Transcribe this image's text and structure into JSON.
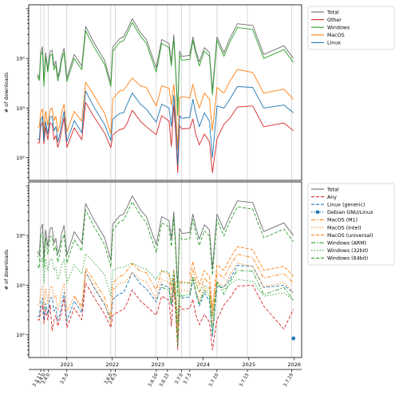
{
  "chart_data": [
    {
      "type": "line",
      "ylabel": "# of downloads",
      "yscale": "log",
      "yticks": [
        {
          "v": 100,
          "label": "10²"
        },
        {
          "v": 1000,
          "label": "10³"
        },
        {
          "v": 10000,
          "label": "10⁴"
        }
      ],
      "ylim": [
        35,
        120000
      ],
      "grid": "vertical at release dates",
      "legend": "outside right, upper",
      "series": [
        {
          "name": "Total",
          "color": "#6d6d6d",
          "dash": "",
          "values": [
            4800,
            4000,
            13500,
            17000,
            3200,
            13000,
            6000,
            14000,
            14500,
            7000,
            8800,
            4200,
            6000,
            11000,
            16000,
            4000,
            12000,
            7000,
            44000,
            22000,
            9000,
            3200,
            17000,
            25000,
            27000,
            38000,
            63000,
            33000,
            24000,
            6500,
            24000,
            20000,
            8500,
            30000,
            6200,
            900,
            14000,
            11000,
            11500,
            27000,
            15000,
            8500,
            16500,
            13000,
            2200,
            27000,
            13000,
            25000,
            50000,
            46000,
            12000,
            18000,
            10000
          ]
        },
        {
          "name": "Other",
          "color": "#d62728",
          "dash": "",
          "values": [
            200,
            200,
            430,
            520,
            190,
            410,
            230,
            500,
            480,
            230,
            280,
            160,
            230,
            350,
            640,
            160,
            400,
            230,
            1300,
            700,
            310,
            160,
            290,
            370,
            380,
            500,
            900,
            540,
            420,
            290,
            700,
            550,
            170,
            1150,
            300,
            50,
            440,
            380,
            390,
            600,
            300,
            180,
            300,
            210,
            50,
            240,
            470,
            620,
            1050,
            1100,
            420,
            500,
            350
          ]
        },
        {
          "name": "Windows",
          "color": "#2ca02c",
          "dash": "",
          "values": [
            4300,
            3600,
            11500,
            14000,
            2700,
            11000,
            5300,
            11500,
            12000,
            5900,
            7300,
            3500,
            5100,
            9200,
            13000,
            3400,
            10000,
            5900,
            36000,
            18000,
            7500,
            2700,
            14000,
            21000,
            22500,
            32000,
            53000,
            28000,
            20000,
            5300,
            20000,
            16500,
            7000,
            25000,
            5200,
            700,
            11800,
            9200,
            9600,
            23000,
            12800,
            7000,
            14000,
            11000,
            1850,
            23000,
            11000,
            21000,
            42000,
            38000,
            10000,
            15000,
            8300
          ]
        },
        {
          "name": "MacOS",
          "color": "#ff7f0e",
          "dash": "",
          "values": [
            410,
            420,
            820,
            960,
            300,
            870,
            450,
            930,
            1000,
            560,
            680,
            330,
            450,
            790,
            1200,
            330,
            860,
            540,
            3300,
            1900,
            780,
            300,
            1550,
            2200,
            2300,
            2900,
            4000,
            2800,
            2600,
            1100,
            2800,
            2500,
            1150,
            3000,
            1000,
            150,
            1600,
            1700,
            1600,
            3000,
            1700,
            1000,
            2000,
            1500,
            350,
            2600,
            2000,
            3400,
            6000,
            5200,
            2000,
            2400,
            1500
          ]
        },
        {
          "name": "Linux",
          "color": "#1f77b4",
          "dash": "",
          "values": [
            230,
            240,
            560,
            680,
            220,
            530,
            300,
            670,
            680,
            350,
            420,
            210,
            290,
            470,
            860,
            210,
            560,
            320,
            2200,
            1100,
            460,
            220,
            600,
            780,
            800,
            1200,
            2000,
            1200,
            950,
            520,
            1200,
            1000,
            420,
            1800,
            480,
            70,
            700,
            620,
            650,
            1500,
            800,
            420,
            800,
            540,
            100,
            1100,
            1000,
            1500,
            2700,
            2600,
            1000,
            1150,
            800
          ]
        }
      ]
    },
    {
      "type": "line",
      "ylabel": "# of downloads",
      "yscale": "log",
      "yticks": [
        {
          "v": 100,
          "label": "10²"
        },
        {
          "v": 1000,
          "label": "10³"
        },
        {
          "v": 10000,
          "label": "10⁴"
        }
      ],
      "ylim": [
        35,
        120000
      ],
      "grid": "vertical at release dates",
      "legend": "outside right, upper",
      "series": [
        {
          "name": "Total",
          "color": "#6d6d6d",
          "dash": "",
          "values": [
            4800,
            4000,
            13500,
            17000,
            3200,
            13000,
            6000,
            14000,
            14500,
            7000,
            8800,
            4200,
            6000,
            11000,
            16000,
            4000,
            12000,
            7000,
            44000,
            22000,
            9000,
            3200,
            17000,
            25000,
            27000,
            38000,
            63000,
            33000,
            24000,
            6500,
            24000,
            20000,
            8500,
            30000,
            6200,
            900,
            14000,
            11000,
            11500,
            27000,
            15000,
            8500,
            16500,
            13000,
            2200,
            27000,
            13000,
            25000,
            50000,
            46000,
            12000,
            18000,
            10000
          ]
        },
        {
          "name": "Any",
          "color": "#d62728",
          "dash": "4,2",
          "values": [
            200,
            200,
            330,
            400,
            170,
            320,
            200,
            400,
            120,
            200,
            250,
            150,
            200,
            300,
            550,
            140,
            350,
            200,
            1100,
            600,
            260,
            140,
            250,
            300,
            320,
            450,
            800,
            480,
            380,
            250,
            600,
            500,
            150,
            1000,
            260,
            50,
            380,
            330,
            340,
            520,
            260,
            160,
            260,
            180,
            50,
            200,
            400,
            550,
            950,
            1000,
            380,
            130,
            330
          ]
        },
        {
          "name": "Linux (generic)",
          "color": "#1f77b4",
          "dash": "4,2",
          "values": [
            230,
            240,
            450,
            550,
            200,
            430,
            260,
            560,
            560,
            300,
            360,
            190,
            250,
            400,
            720,
            190,
            480,
            280,
            1900,
            950,
            400,
            200,
            520,
            680,
            700,
            1050,
            1800,
            1050,
            850,
            460,
            1050,
            900,
            380,
            1600,
            430,
            70,
            620,
            550,
            580,
            1300,
            700,
            380,
            700,
            480,
            90,
            950,
            900,
            1300,
            2500,
            2400,
            900,
            1000,
            700
          ]
        },
        {
          "name": "Debian GNU/Linux",
          "color": "#1f77b4",
          "dash": "1.5,2",
          "marker": true,
          "values": [
            null,
            null,
            null,
            null,
            null,
            null,
            null,
            null,
            null,
            null,
            null,
            null,
            null,
            null,
            null,
            null,
            null,
            null,
            null,
            null,
            null,
            null,
            null,
            null,
            null,
            null,
            null,
            null,
            null,
            null,
            null,
            null,
            null,
            null,
            null,
            null,
            null,
            null,
            null,
            null,
            null,
            null,
            null,
            null,
            null,
            null,
            null,
            null,
            null,
            null,
            null,
            null,
            85
          ]
        },
        {
          "name": "MacOS (M1)",
          "color": "#ff7f0e",
          "dash": "5,2,1.5,2",
          "values": [
            null,
            null,
            null,
            null,
            null,
            null,
            null,
            null,
            null,
            null,
            null,
            null,
            null,
            null,
            null,
            null,
            600,
            380,
            2200,
            1300,
            560,
            220,
            1100,
            1500,
            1600,
            2000,
            2700,
            1900,
            1800,
            780,
            1900,
            1700,
            800,
            2100,
            700,
            110,
            1100,
            1200,
            1100,
            2100,
            1200,
            700,
            1400,
            1050,
            250,
            1800,
            1400,
            2400,
            4200,
            3600,
            1400,
            1700,
            1100
          ]
        },
        {
          "name": "MacOS (Intel)",
          "color": "#ff7f0e",
          "dash": "1.5,2",
          "values": [
            400,
            410,
            800,
            930,
            300,
            840,
            430,
            900,
            950,
            530,
            640,
            310,
            420,
            740,
            1100,
            300,
            600,
            330,
            1800,
            1000,
            420,
            160,
            800,
            1100,
            1100,
            1300,
            1800,
            1300,
            1200,
            520,
            1300,
            1150,
            520,
            1400,
            470,
            70,
            750,
            800,
            750,
            1400,
            800,
            470,
            930,
            700,
            160,
            1200,
            930,
            1600,
            2800,
            2400,
            930,
            1150,
            700
          ]
        },
        {
          "name": "MacOS (universal)",
          "color": "#ff7f0e",
          "dash": "4,2",
          "values": [
            null,
            null,
            null,
            null,
            null,
            null,
            null,
            null,
            null,
            null,
            null,
            null,
            null,
            null,
            null,
            null,
            null,
            null,
            null,
            null,
            null,
            null,
            null,
            null,
            null,
            null,
            null,
            null,
            null,
            null,
            null,
            null,
            null,
            null,
            null,
            null,
            null,
            null,
            1600,
            3000,
            1700,
            1000,
            2000,
            1500,
            350,
            2600,
            2000,
            3400,
            6000,
            5200,
            2000,
            2400,
            1500
          ]
        },
        {
          "name": "Windows (ARM)",
          "color": "#2ca02c",
          "dash": "5,2,1.5,2",
          "values": [
            null,
            null,
            null,
            null,
            null,
            null,
            null,
            null,
            null,
            null,
            null,
            null,
            null,
            null,
            null,
            null,
            null,
            null,
            null,
            null,
            null,
            null,
            null,
            null,
            null,
            null,
            null,
            null,
            null,
            null,
            900,
            800,
            400,
            1200,
            350,
            60,
            700,
            600,
            650,
            1400,
            750,
            420,
            800,
            600,
            110,
            1200,
            650,
            1150,
            2000,
            1900,
            650,
            900,
            500
          ]
        },
        {
          "name": "Windows (32bit)",
          "color": "#2ca02c",
          "dash": "1.5,2",
          "values": [
            3900,
            3300,
            3000,
            3600,
            1100,
            3400,
            2000,
            3300,
            3400,
            2000,
            2300,
            1300,
            1700,
            2600,
            3400,
            1100,
            2600,
            1700,
            4300,
            3000,
            1600,
            600,
            2000,
            2300,
            2300,
            2500,
            2800,
            2300,
            2100,
            1300,
            2000,
            1800,
            1000,
            2000,
            900,
            160,
            1200,
            1100,
            1100,
            1500,
            1100,
            750,
            1000,
            850,
            230,
            1100,
            800,
            1050,
            1300,
            1200,
            600,
            700,
            500
          ]
        },
        {
          "name": "Windows (64bit)",
          "color": "#2ca02c",
          "dash": "4,2",
          "values": [
            2500,
            2200,
            9500,
            11500,
            2200,
            9000,
            4200,
            9300,
            9700,
            4900,
            6000,
            2900,
            4200,
            7500,
            10500,
            2800,
            8200,
            4900,
            33000,
            16000,
            6500,
            2300,
            12500,
            19000,
            20500,
            29000,
            48000,
            26000,
            18000,
            4500,
            18000,
            15000,
            6000,
            23000,
            4500,
            600,
            10500,
            8200,
            8600,
            21000,
            11500,
            6300,
            12500,
            9800,
            1600,
            21000,
            9800,
            19000,
            38000,
            34000,
            9000,
            13500,
            7500
          ]
        }
      ]
    }
  ],
  "x_dates": [
    "2020-05-10",
    "2020-05-25",
    "2020-06-05",
    "2020-06-20",
    "2020-07-01",
    "2020-07-15",
    "2020-08-01",
    "2020-08-20",
    "2020-09-05",
    "2020-09-20",
    "2020-10-05",
    "2020-10-20",
    "2020-11-05",
    "2020-11-20",
    "2020-12-10",
    "2021-01-01",
    "2021-03-01",
    "2021-05-01",
    "2021-06-01",
    "2021-08-01",
    "2021-11-01",
    "2021-12-20",
    "2022-01-05",
    "2022-03-01",
    "2022-04-01",
    "2022-05-01",
    "2022-06-10",
    "2022-08-15",
    "2022-10-01",
    "2022-12-20",
    "2023-02-01",
    "2023-04-01",
    "2023-04-20",
    "2023-05-10",
    "2023-05-25",
    "2023-06-10",
    "2023-06-25",
    "2023-07-15",
    "2023-09-15",
    "2023-10-10",
    "2023-11-01",
    "2023-12-01",
    "2024-01-10",
    "2024-02-20",
    "2024-03-15",
    "2024-04-20",
    "2024-06-15",
    "2024-08-01",
    "2024-10-01",
    "2025-02-01",
    "2025-05-01",
    "2025-10-10",
    "2025-12-25"
  ],
  "x_axis": {
    "year_ticks": [
      {
        "date": "2021-01-01",
        "label": "2021"
      },
      {
        "date": "2022-01-01",
        "label": "2022"
      },
      {
        "date": "2023-01-01",
        "label": "2023"
      },
      {
        "date": "2024-01-01",
        "label": "2024"
      },
      {
        "date": "2025-01-01",
        "label": "2025"
      },
      {
        "date": "2026-01-01",
        "label": "2026"
      }
    ],
    "releases": [
      {
        "date": "2020-06-05",
        "label": "3.3.17"
      },
      {
        "date": "2020-07-01",
        "label": "3.4.0"
      },
      {
        "date": "2020-08-05",
        "label": "3.4.0"
      },
      {
        "date": "2021-01-01",
        "label": "3.5.0"
      },
      {
        "date": "2021-12-20",
        "label": "3.6.0"
      },
      {
        "date": "2022-01-25",
        "label": "3.6.5"
      },
      {
        "date": "2022-12-20",
        "label": "3.6.10"
      },
      {
        "date": "2023-03-20",
        "label": "3.6.15"
      },
      {
        "date": "2023-07-10",
        "label": "3.7.0"
      },
      {
        "date": "2023-09-15",
        "label": "3.7.5"
      },
      {
        "date": "2024-04-20",
        "label": "3.7.10"
      },
      {
        "date": "2024-12-20",
        "label": "3.7.15"
      },
      {
        "date": "2025-12-10",
        "label": "3.7.19"
      }
    ]
  }
}
